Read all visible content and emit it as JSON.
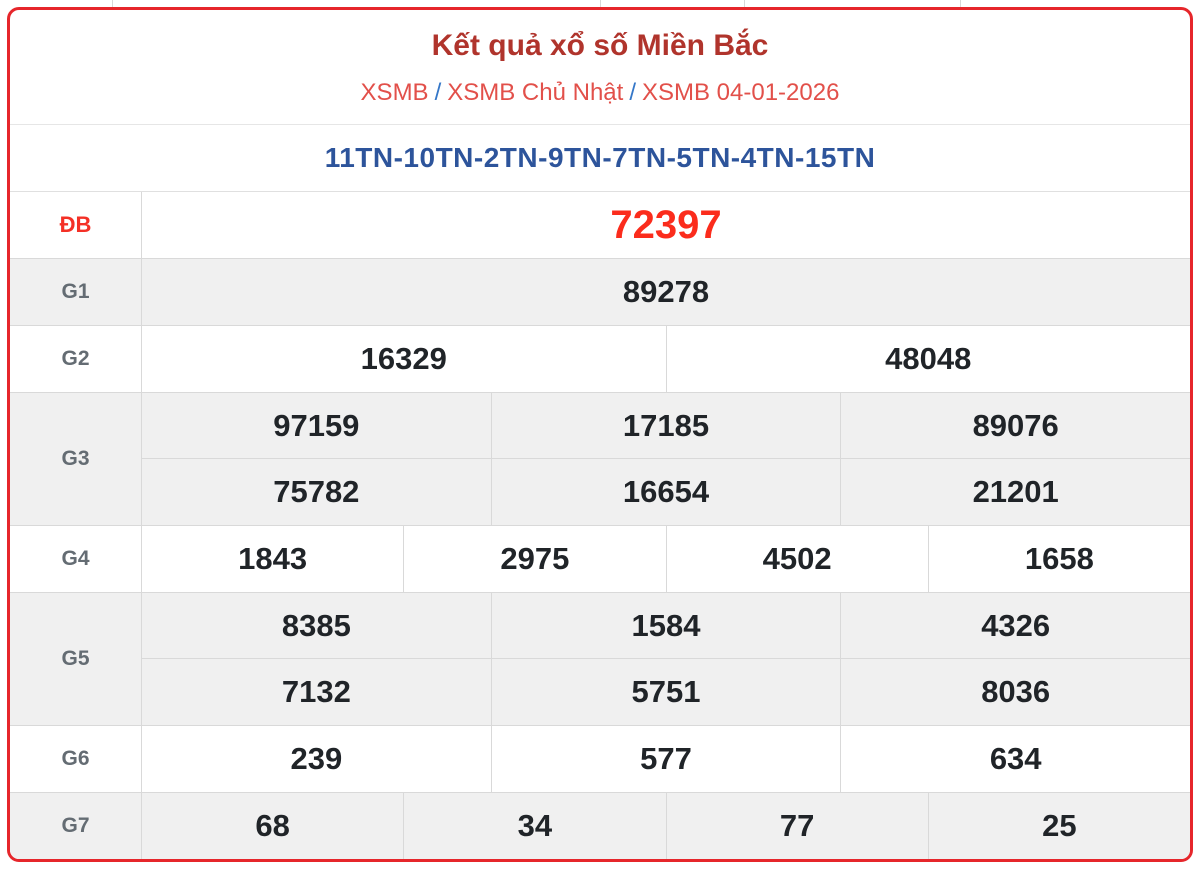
{
  "page": {
    "title": "Kết quả xổ số Miền Bắc",
    "breadcrumb": {
      "items": [
        "XSMB",
        "XSMB Chủ Nhật",
        "XSMB 04-01-2026"
      ],
      "separator": "/"
    },
    "ticket_codes": "11TN-10TN-2TN-9TN-7TN-5TN-4TN-15TN"
  },
  "results": {
    "rows": [
      {
        "label": "ĐB",
        "highlight": true,
        "bg": "white",
        "lines": [
          [
            "72397"
          ]
        ]
      },
      {
        "label": "G1",
        "highlight": false,
        "bg": "gray",
        "lines": [
          [
            "89278"
          ]
        ]
      },
      {
        "label": "G2",
        "highlight": false,
        "bg": "white",
        "lines": [
          [
            "16329",
            "48048"
          ]
        ]
      },
      {
        "label": "G3",
        "highlight": false,
        "bg": "gray",
        "lines": [
          [
            "97159",
            "17185",
            "89076"
          ],
          [
            "75782",
            "16654",
            "21201"
          ]
        ]
      },
      {
        "label": "G4",
        "highlight": false,
        "bg": "white",
        "lines": [
          [
            "1843",
            "2975",
            "4502",
            "1658"
          ]
        ]
      },
      {
        "label": "G5",
        "highlight": false,
        "bg": "gray",
        "lines": [
          [
            "8385",
            "1584",
            "4326"
          ],
          [
            "7132",
            "5751",
            "8036"
          ]
        ]
      },
      {
        "label": "G6",
        "highlight": false,
        "bg": "white",
        "lines": [
          [
            "239",
            "577",
            "634"
          ]
        ]
      },
      {
        "label": "G7",
        "highlight": false,
        "bg": "gray",
        "lines": [
          [
            "68",
            "34",
            "77",
            "25"
          ]
        ]
      }
    ]
  },
  "colors": {
    "card_border": "#e6262b",
    "title": "#b0342c",
    "breadcrumb_link": "#e2504a",
    "breadcrumb_separator": "#3577c8",
    "ticket_codes": "#2d549b",
    "special_prize": "#fb2c1c",
    "prize_value": "#202428",
    "row_gray": "#f0f0f0"
  }
}
